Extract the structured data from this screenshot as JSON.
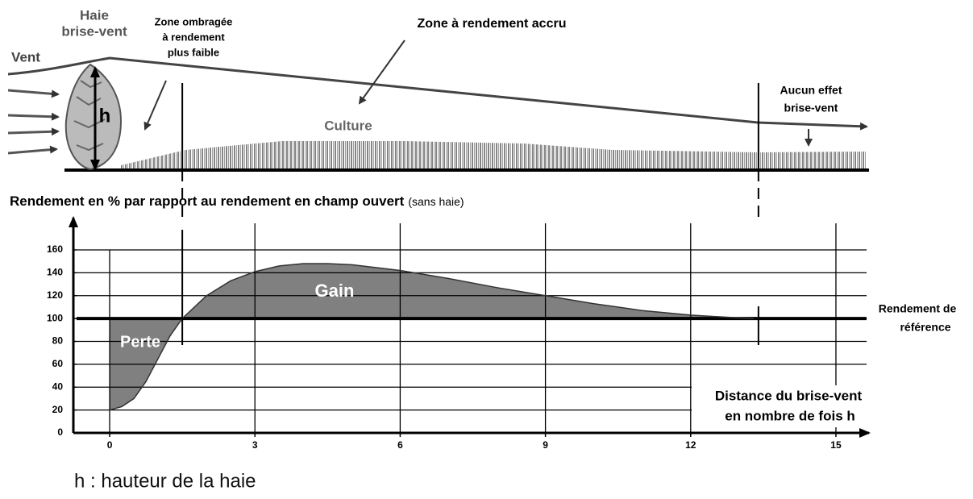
{
  "chart_data": {
    "type": "area",
    "title": "Rendement en % par rapport au rendement en champ ouvert",
    "subtitle": "(sans haie)",
    "xlabel": [
      "Distance du brise-vent",
      "en nombre de fois h"
    ],
    "x": [
      0,
      0.25,
      0.5,
      0.75,
      1,
      1.25,
      1.5,
      2,
      2.5,
      3,
      3.5,
      4,
      4.5,
      5,
      6,
      7,
      8,
      9,
      10,
      11,
      12,
      13,
      13.3
    ],
    "values": [
      20,
      23,
      30,
      45,
      65,
      85,
      100,
      120,
      133,
      141,
      146,
      148,
      148,
      147,
      142,
      135,
      127,
      120,
      113,
      107,
      103,
      100.5,
      100
    ],
    "color": "#808080",
    "reference": {
      "value": 100,
      "label": [
        "Rendement de",
        "référence"
      ]
    },
    "gain_label": "Gain",
    "loss_label": "Perte",
    "zone_bounds": [
      1.5,
      13.4
    ],
    "xlim": [
      -0.75,
      15.6
    ],
    "ylim": [
      0,
      160
    ],
    "xticks": [
      0,
      3,
      6,
      9,
      12,
      15
    ],
    "yticks": [
      0,
      20,
      40,
      60,
      80,
      100,
      120,
      140,
      160
    ],
    "grid": true,
    "illustration": {
      "hedge": [
        "Haie",
        "brise-vent"
      ],
      "wind": "Vent",
      "height": "h",
      "shade_zone": [
        "Zone ombragée",
        "à rendement",
        "plus faible"
      ],
      "gain_zone": "Zone à rendement accru",
      "crop": "Culture",
      "no_effect": [
        "Aucun effet",
        "brise-vent"
      ]
    },
    "note": "h : hauteur de la haie"
  }
}
